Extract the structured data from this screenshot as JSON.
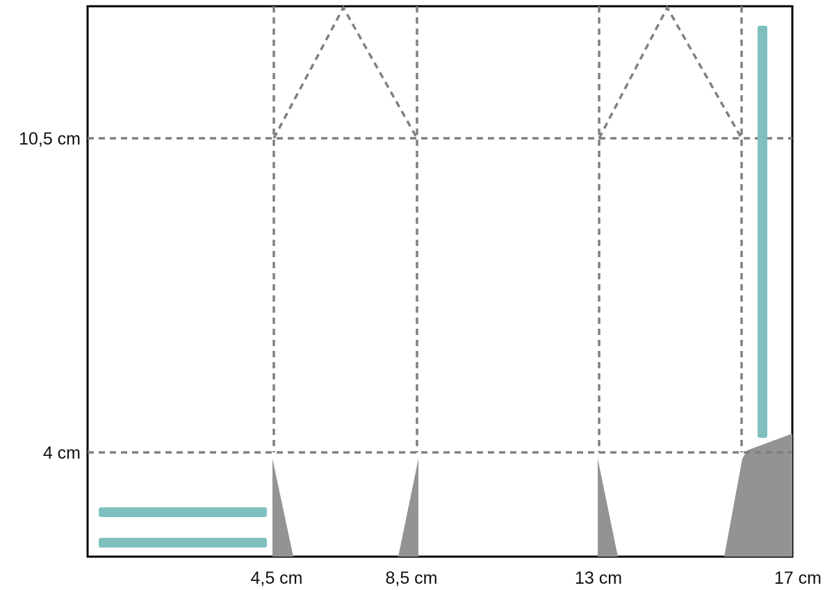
{
  "template": {
    "colors": {
      "outline": "#000000",
      "fold_line": "#808080",
      "cut_triangle": "#939393",
      "glue_strip": "#7fc0bf"
    },
    "labels": {
      "y_10_5": "10,5 cm",
      "y_4": "4 cm",
      "x_4_5": "4,5 cm",
      "x_8_5": "8,5 cm",
      "x_13": "13 cm",
      "x_17": "17 cm"
    }
  }
}
